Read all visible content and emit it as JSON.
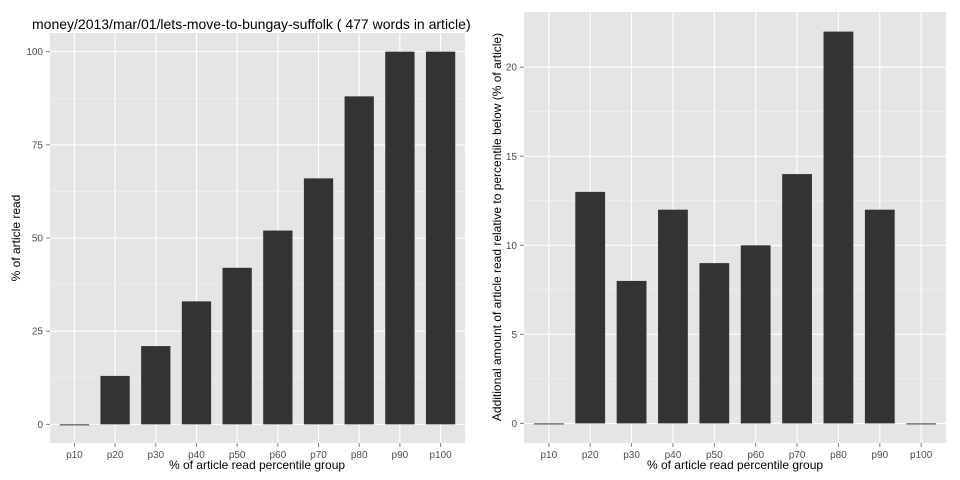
{
  "chart_data": [
    {
      "type": "bar",
      "title": "money/2013/mar/01/lets-move-to-bungay-suffolk ( 477 words in article)",
      "xlabel": "% of article read percentile group",
      "ylabel": "% of article read",
      "categories": [
        "p10",
        "p20",
        "p30",
        "p40",
        "p50",
        "p60",
        "p70",
        "p80",
        "p90",
        "p100"
      ],
      "values": [
        0,
        13,
        21,
        33,
        42,
        52,
        66,
        88,
        100,
        100
      ],
      "ylim": [
        -5,
        105
      ],
      "yticks": [
        0,
        25,
        50,
        75,
        100
      ],
      "grid": true,
      "bar_color": "#333333",
      "panel_color": "#e5e5e5",
      "grid_color": "#ffffff"
    },
    {
      "type": "bar",
      "title": "",
      "xlabel": "% of article read percentile group",
      "ylabel": "Additional amount of article read relative to percentile below (% of article)",
      "categories": [
        "p10",
        "p20",
        "p30",
        "p40",
        "p50",
        "p60",
        "p70",
        "p80",
        "p90",
        "p100"
      ],
      "values": [
        0,
        13,
        8,
        12,
        9,
        10,
        14,
        22,
        12,
        0
      ],
      "ylim": [
        -1.1,
        23.1
      ],
      "yticks": [
        0,
        5,
        10,
        15,
        20
      ],
      "grid": true,
      "bar_color": "#333333",
      "panel_color": "#e5e5e5",
      "grid_color": "#ffffff"
    }
  ]
}
